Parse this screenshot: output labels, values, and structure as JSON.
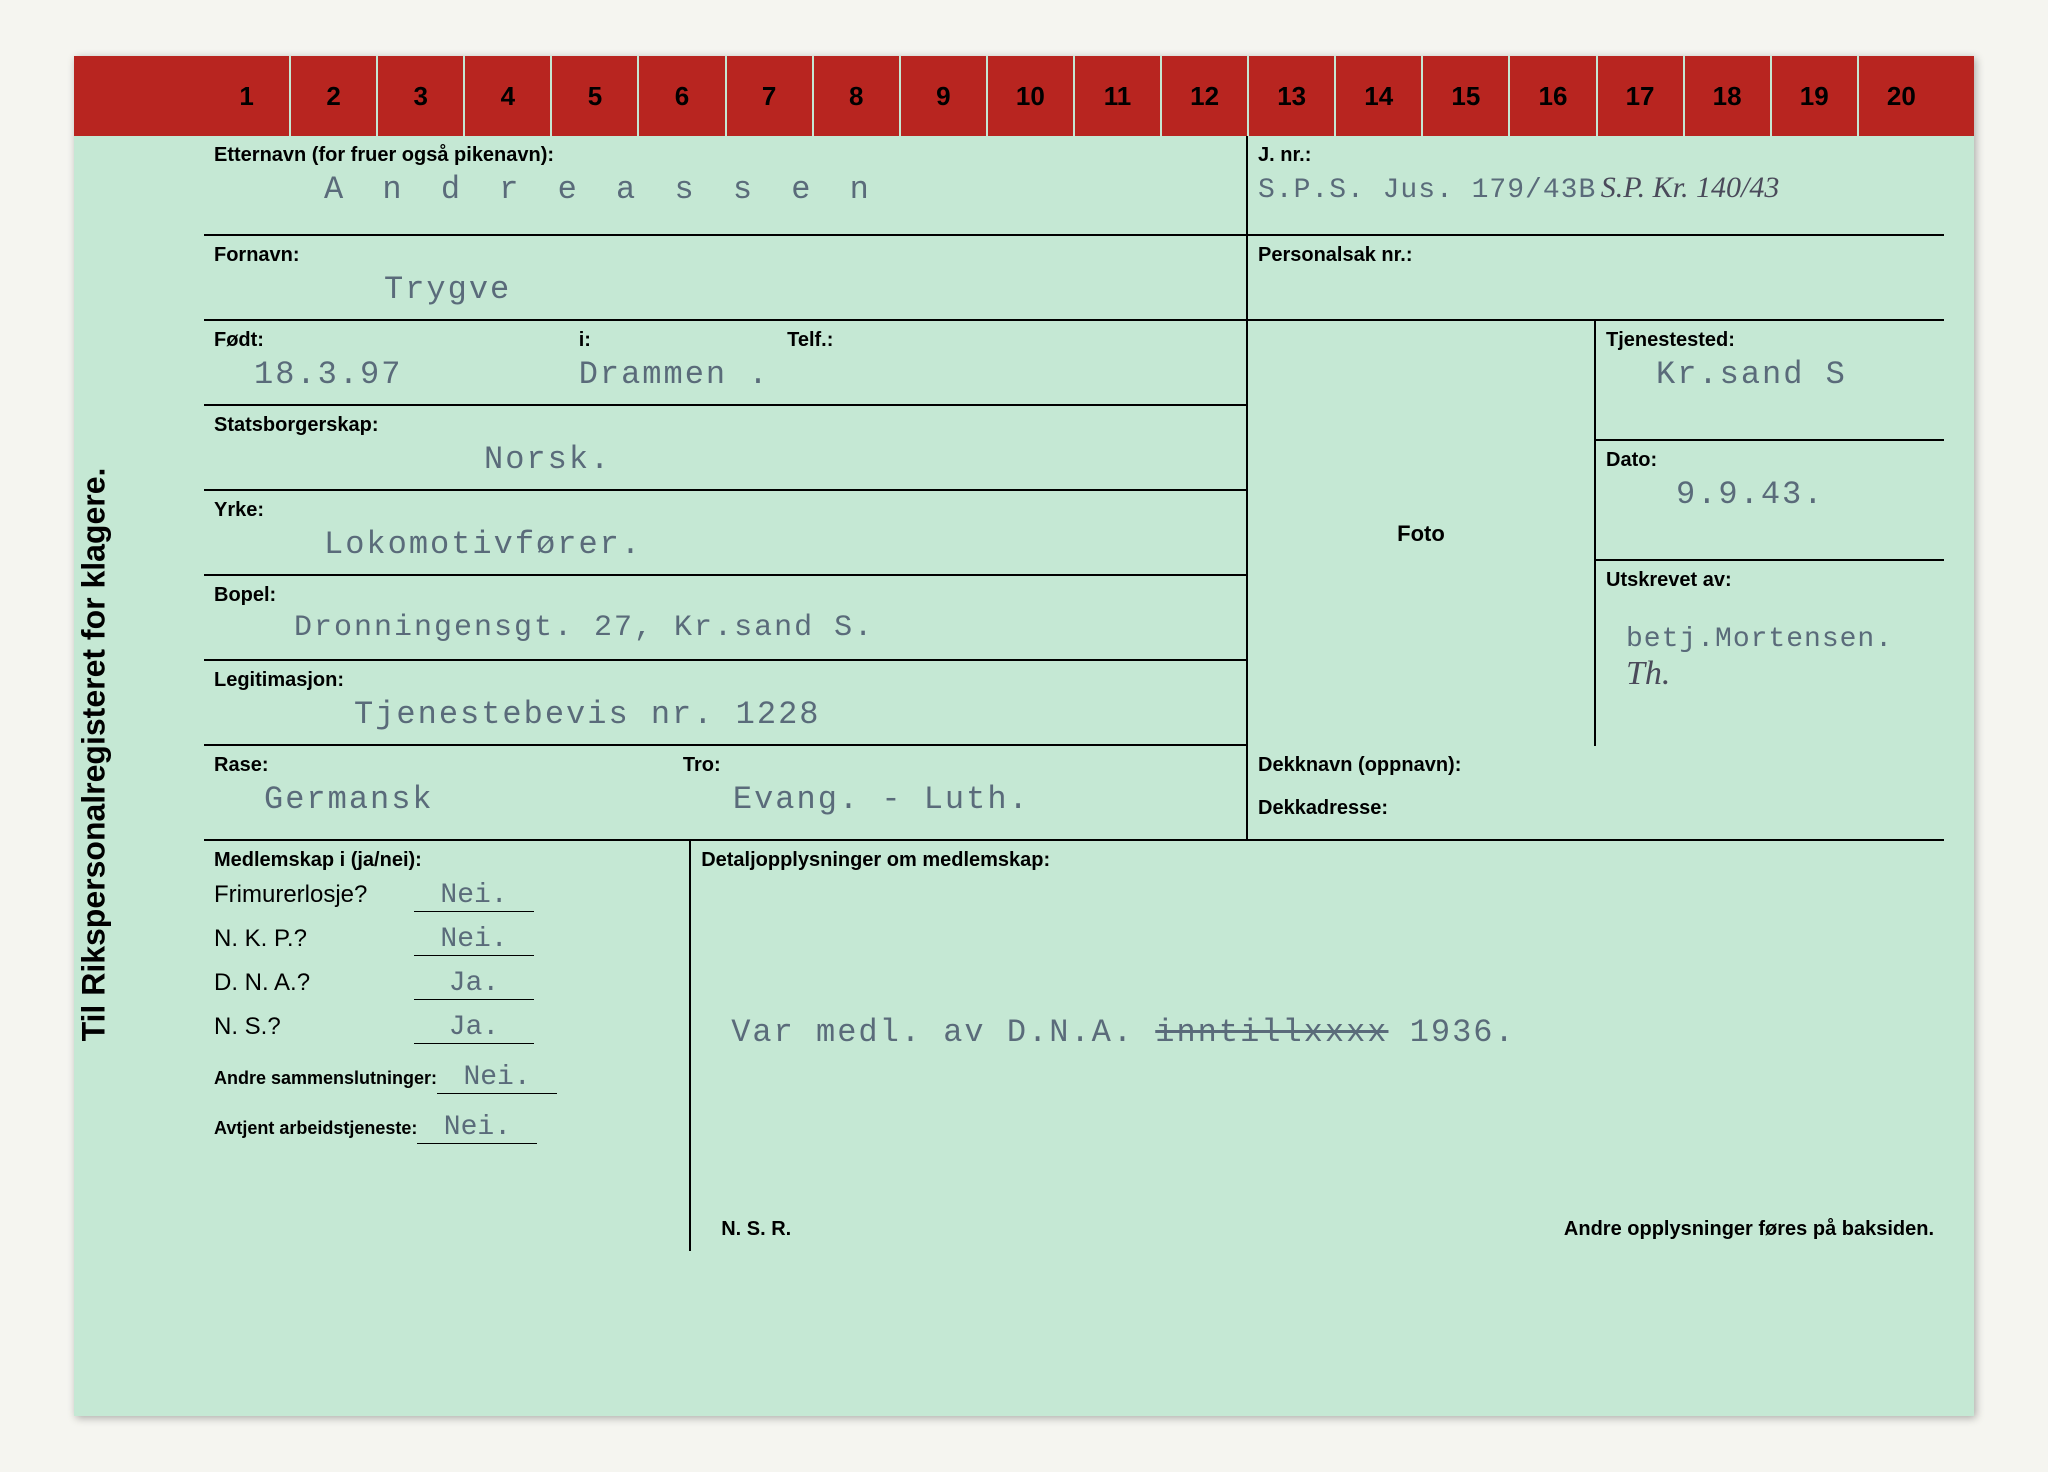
{
  "header_numbers": [
    "1",
    "2",
    "3",
    "4",
    "5",
    "6",
    "7",
    "8",
    "9",
    "10",
    "11",
    "12",
    "13",
    "14",
    "15",
    "16",
    "17",
    "18",
    "19",
    "20"
  ],
  "vertical_title": "Til Rikspersonalregisteret for klagere.",
  "labels": {
    "etternavn": "Etternavn (for fruer også pikenavn):",
    "jnr": "J. nr.:",
    "fornavn": "Fornavn:",
    "personalsak": "Personalsak nr.:",
    "fodt": "Født:",
    "fodt_i": "i:",
    "tjenestested": "Tjenestested:",
    "statsborgerskap": "Statsborgerskap:",
    "dato": "Dato:",
    "yrke": "Yrke:",
    "foto": "Foto",
    "bopel": "Bopel:",
    "telf": "Telf.:",
    "utskrevet": "Utskrevet av:",
    "legitimasjon": "Legitimasjon:",
    "rase": "Rase:",
    "tro": "Tro:",
    "dekknavn": "Dekknavn (oppnavn):",
    "dekkadresse": "Dekkadresse:",
    "medlemskap": "Medlemskap i (ja/nei):",
    "detaljopplysninger": "Detaljopplysninger om medlemskap:",
    "frimurer": "Frimurerlosje?",
    "nkp": "N. K. P.?",
    "dna": "D. N. A.?",
    "ns": "N. S.?",
    "andre": "Andre sammenslutninger:",
    "avtjent": "Avtjent arbeidstjeneste:",
    "nsr": "N. S. R.",
    "andre_opplysninger": "Andre opplysninger føres på baksiden."
  },
  "values": {
    "etternavn": "A n d r e a s s e n",
    "jnr_typed": "S.P.S. Jus. 179/43B",
    "jnr_hand": "S.P. Kr. 140/43",
    "fornavn": "Trygve",
    "fodt": "18.3.97",
    "fodt_i": "Drammen .",
    "tjenestested": "Kr.sand S",
    "statsborgerskap": "Norsk.",
    "dato": "9.9.43.",
    "yrke": "Lokomotivfører.",
    "bopel": "Dronningensgt. 27, Kr.sand S.",
    "utskrevet": "betj.Mortensen.",
    "utskrevet_hand": "Th.",
    "legitimasjon": "Tjenestebevis nr. 1228",
    "rase": "Germansk",
    "tro": "Evang. - Luth.",
    "frimurer": "Nei.",
    "nkp": "Nei.",
    "dna": "Ja.",
    "ns": "Ja.",
    "andre": "Nei.",
    "avtjent": "Nei.",
    "detalj_text": "Var medl. av D.N.A. inntillxxxx 1936.",
    "detalj_strike": "inntillxxxx"
  },
  "colors": {
    "card_bg": "#c5e8d4",
    "red_strip": "#b82520",
    "typed_text": "#5a6b7a",
    "line": "#000000"
  }
}
